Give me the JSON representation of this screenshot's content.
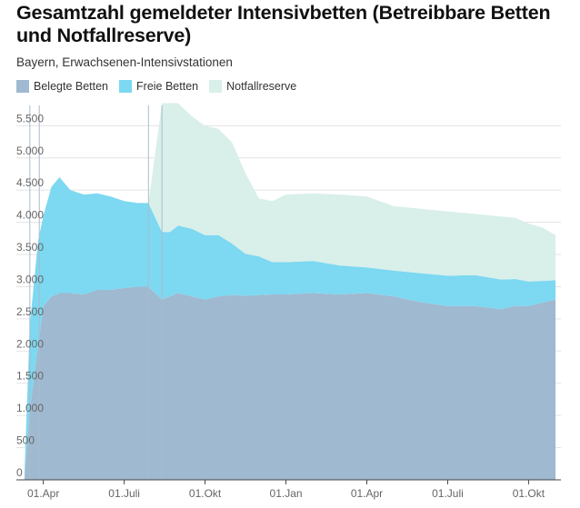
{
  "title": "Gesamtzahl gemeldeter Intensivbetten (Betreibbare Betten und Notfallreserve)",
  "subtitle": "Bayern, Erwachsenen-Intensivstationen",
  "colors": {
    "belegt": "#9fb9d0",
    "frei": "#7dd8f1",
    "notfall": "#d9efea",
    "grid": "#e3e3e3",
    "axis": "#444444",
    "marker": "#a9bccb"
  },
  "chart_data": {
    "type": "area",
    "stacked": true,
    "x_unit": "months since 2020-03-01",
    "xlim": [
      0,
      20.2
    ],
    "ylim": [
      0,
      5900
    ],
    "y_ticks": [
      0,
      500,
      1000,
      1500,
      2000,
      2500,
      3000,
      3500,
      4000,
      4500,
      5000,
      5500
    ],
    "y_tick_labels": [
      "0",
      "500",
      "1.000",
      "1.500",
      "2.000",
      "2.500",
      "3.000",
      "3.500",
      "4.000",
      "4.500",
      "5.000",
      "5.500"
    ],
    "x_ticks": [
      1,
      4,
      7,
      10,
      13,
      16,
      19
    ],
    "x_tick_labels": [
      "01.Apr",
      "01.Juli",
      "01.Okt",
      "01.Jan",
      "01.Apr",
      "01.Juli",
      "01.Okt"
    ],
    "grid": true,
    "legend_position": "top-left",
    "reference_lines_x": [
      0.5,
      0.85,
      4.9,
      5.4
    ],
    "series": [
      {
        "name": "Belegte Betten",
        "x": [
          0.3,
          0.5,
          0.8,
          1.0,
          1.3,
          1.6,
          2.0,
          2.5,
          3.0,
          3.5,
          4.0,
          4.5,
          4.9,
          5.4,
          5.7,
          6.0,
          6.5,
          7.0,
          7.5,
          8.0,
          8.5,
          9.0,
          9.5,
          10.0,
          11.0,
          12.0,
          13.0,
          14.0,
          15.0,
          16.0,
          17.0,
          18.0,
          18.5,
          19.0,
          19.5,
          20.0
        ],
        "values": [
          0,
          1100,
          2050,
          2700,
          2850,
          2900,
          2900,
          2880,
          2950,
          2950,
          2980,
          3000,
          3000,
          2800,
          2850,
          2900,
          2850,
          2800,
          2850,
          2870,
          2860,
          2870,
          2880,
          2880,
          2900,
          2880,
          2900,
          2850,
          2760,
          2700,
          2700,
          2650,
          2700,
          2700,
          2750,
          2800
        ]
      },
      {
        "name": "Freie Betten",
        "x": [
          0.3,
          0.5,
          0.8,
          1.0,
          1.3,
          1.6,
          2.0,
          2.5,
          3.0,
          3.5,
          4.0,
          4.5,
          4.9,
          5.4,
          5.7,
          6.0,
          6.5,
          7.0,
          7.5,
          8.0,
          8.5,
          9.0,
          9.5,
          10.0,
          11.0,
          12.0,
          13.0,
          14.0,
          15.0,
          16.0,
          17.0,
          18.0,
          18.5,
          19.0,
          19.5,
          20.0
        ],
        "values": [
          100,
          1300,
          1650,
          1400,
          1700,
          1800,
          1600,
          1550,
          1500,
          1450,
          1350,
          1300,
          1300,
          1050,
          1000,
          1050,
          1050,
          1000,
          950,
          800,
          650,
          600,
          500,
          500,
          500,
          450,
          400,
          400,
          450,
          470,
          480,
          460,
          420,
          380,
          340,
          300
        ]
      },
      {
        "name": "Notfallreserve",
        "x": [
          0.3,
          0.5,
          0.8,
          1.0,
          1.3,
          1.6,
          2.0,
          2.5,
          3.0,
          3.5,
          4.0,
          4.5,
          4.9,
          5.4,
          5.7,
          6.0,
          6.5,
          7.0,
          7.5,
          8.0,
          8.5,
          9.0,
          9.5,
          10.0,
          11.0,
          12.0,
          13.0,
          14.0,
          15.0,
          16.0,
          17.0,
          18.0,
          18.5,
          19.0,
          19.5,
          20.0
        ],
        "values": [
          0,
          0,
          0,
          0,
          0,
          0,
          0,
          0,
          0,
          0,
          0,
          0,
          0,
          2000,
          2000,
          1900,
          1750,
          1700,
          1650,
          1570,
          1250,
          900,
          950,
          1050,
          1050,
          1100,
          1100,
          1000,
          1000,
          1000,
          950,
          980,
          950,
          900,
          830,
          700
        ]
      }
    ]
  }
}
